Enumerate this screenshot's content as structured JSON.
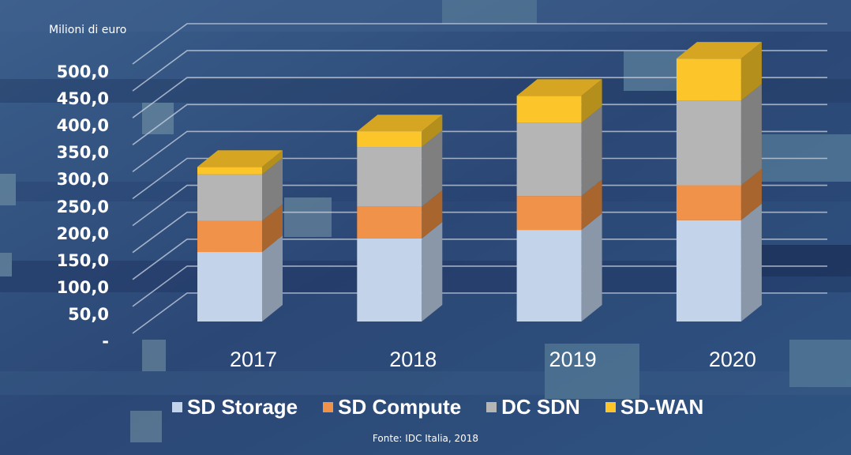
{
  "chart_data": {
    "type": "bar",
    "subtype": "stacked-3d",
    "title": "",
    "ylabel": "Milioni di euro",
    "xlabel": "",
    "categories": [
      "2017",
      "2018",
      "2019",
      "2020"
    ],
    "ylim": [
      0,
      500
    ],
    "yticks": [
      0,
      50,
      100,
      150,
      200,
      250,
      300,
      350,
      400,
      450,
      500
    ],
    "ytick_labels": [
      "-",
      "50,0",
      "100,0",
      "150,0",
      "200,0",
      "250,0",
      "300,0",
      "350,0",
      "400,0",
      "450,0",
      "500,0"
    ],
    "grid": true,
    "legend_position": "bottom",
    "series": [
      {
        "name": "SD Storage",
        "color": "#c3d3ea",
        "side": "#8a97a9",
        "top": "#dbe5f3",
        "values": [
          129,
          154,
          170,
          188
        ]
      },
      {
        "name": "SD Compute",
        "color": "#f0924a",
        "side": "#a8652e",
        "top": "#f4a86c",
        "values": [
          58,
          59,
          63,
          65
        ]
      },
      {
        "name": "DC SDN",
        "color": "#b5b5b5",
        "side": "#7f7f7f",
        "top": "#c8c8c8",
        "values": [
          86,
          111,
          136,
          157
        ]
      },
      {
        "name": "SD-WAN",
        "color": "#fcc52a",
        "side": "#b58f1c",
        "top": "#d6a521",
        "values": [
          14,
          29,
          50,
          78
        ]
      }
    ],
    "source": "Fonte: IDC Italia, 2018"
  }
}
